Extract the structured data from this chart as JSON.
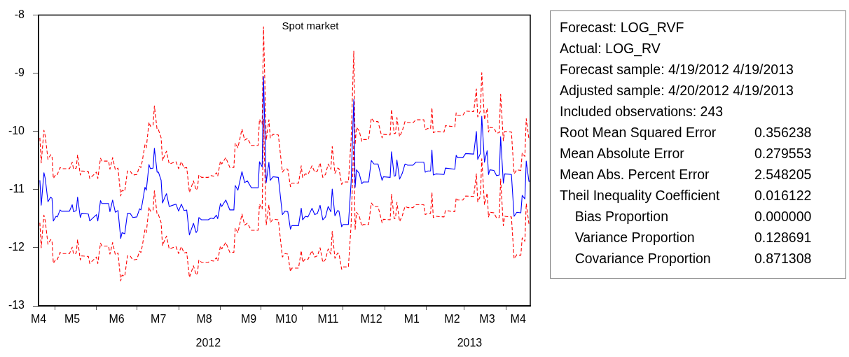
{
  "chart_data": {
    "type": "line",
    "title": "Spot market",
    "x": [
      "2012-04-20",
      "2012-04-21",
      "2012-04-23",
      "2012-04-24",
      "2012-04-26",
      "2012-04-28",
      "2012-04-29",
      "2012-04-30",
      "2012-05-02",
      "2012-05-03",
      "2012-05-05",
      "2012-05-06",
      "2012-05-12",
      "2012-05-14",
      "2012-05-15",
      "2012-05-17",
      "2012-05-18",
      "2012-05-20",
      "2012-05-21",
      "2012-05-26",
      "2012-05-27",
      "2012-06-01",
      "2012-06-02",
      "2012-06-04",
      "2012-06-05",
      "2012-06-10",
      "2012-06-11",
      "2012-06-13",
      "2012-06-15",
      "2012-06-17",
      "2012-06-19",
      "2012-06-20",
      "2012-06-22",
      "2012-06-24",
      "2012-06-26",
      "2012-06-28",
      "2012-07-01",
      "2012-07-03",
      "2012-07-04",
      "2012-07-05",
      "2012-07-07",
      "2012-07-08",
      "2012-07-10",
      "2012-07-11",
      "2012-07-13",
      "2012-07-14",
      "2012-07-16",
      "2012-07-17",
      "2012-07-19",
      "2012-07-20",
      "2012-07-22",
      "2012-07-23",
      "2012-07-25",
      "2012-07-30",
      "2012-08-01",
      "2012-08-03",
      "2012-08-05",
      "2012-08-07",
      "2012-08-09",
      "2012-08-12",
      "2012-08-14",
      "2012-08-15",
      "2012-08-16",
      "2012-08-18",
      "2012-08-23",
      "2012-08-25",
      "2012-08-27",
      "2012-08-29",
      "2012-08-30",
      "2012-09-01",
      "2012-09-02",
      "2012-09-05",
      "2012-09-08",
      "2012-09-11",
      "2012-09-12",
      "2012-09-14",
      "2012-09-17",
      "2012-09-19",
      "2012-09-21",
      "2012-09-24",
      "2012-09-29",
      "2012-09-30",
      "2012-10-02",
      "2012-10-03",
      "2012-10-05",
      "2012-10-07",
      "2012-10-08",
      "2012-10-10",
      "2012-10-14",
      "2012-10-17",
      "2012-10-19",
      "2012-10-21",
      "2012-10-23",
      "2012-10-24",
      "2012-10-29",
      "2012-10-31",
      "2012-11-01",
      "2012-11-03",
      "2012-11-05",
      "2012-11-08",
      "2012-11-10",
      "2012-11-12",
      "2012-11-14",
      "2012-11-16",
      "2012-11-18",
      "2012-11-20",
      "2012-11-22",
      "2012-11-23",
      "2012-11-25",
      "2012-11-27",
      "2012-11-28",
      "2012-11-30",
      "2012-12-01",
      "2012-12-05",
      "2012-12-07",
      "2012-12-09",
      "2012-12-10",
      "2012-12-11",
      "2012-12-13",
      "2012-12-15",
      "2012-12-16",
      "2012-12-20",
      "2012-12-22",
      "2012-12-24",
      "2012-12-27",
      "2012-12-30",
      "2012-12-31",
      "2013-01-05",
      "2013-01-06",
      "2013-01-08",
      "2013-01-09",
      "2013-01-10",
      "2013-01-12",
      "2013-01-14",
      "2013-01-16",
      "2013-01-18",
      "2013-01-22",
      "2013-01-24",
      "2013-01-30",
      "2013-01-31",
      "2013-02-02",
      "2013-02-04",
      "2013-02-05",
      "2013-02-06",
      "2013-02-08",
      "2013-02-14",
      "2013-02-15",
      "2013-02-22",
      "2013-02-23",
      "2013-02-24",
      "2013-02-28",
      "2013-03-02",
      "2013-03-08",
      "2013-03-10",
      "2013-03-11",
      "2013-03-13",
      "2013-03-14",
      "2013-03-16",
      "2013-03-18",
      "2013-03-19",
      "2013-03-20",
      "2013-03-23",
      "2013-03-25",
      "2013-03-27",
      "2013-03-28",
      "2013-03-30",
      "2013-03-31",
      "2013-04-05",
      "2013-04-07",
      "2013-04-09",
      "2013-04-12",
      "2013-04-13",
      "2013-04-15",
      "2013-04-16",
      "2013-04-18",
      "2013-04-19"
    ],
    "series": [
      {
        "color": "#0000ff",
        "line_style": "solid",
        "values": [
          -10.84,
          -11.27,
          -10.71,
          -10.81,
          -11.21,
          -11.13,
          -11.15,
          -11.54,
          -11.46,
          -11.47,
          -11.35,
          -11.37,
          -11.37,
          -11.26,
          -11.38,
          -11.36,
          -11.13,
          -11.48,
          -11.41,
          -11.42,
          -11.54,
          -11.43,
          -11.54,
          -11.19,
          -11.24,
          -11.24,
          -11.38,
          -11.18,
          -11.39,
          -11.36,
          -11.84,
          -11.74,
          -11.76,
          -11.41,
          -11.41,
          -11.48,
          -11.47,
          -11.33,
          -11.35,
          -11.24,
          -10.96,
          -11.01,
          -10.57,
          -10.64,
          -10.63,
          -10.29,
          -10.7,
          -10.7,
          -10.84,
          -11.23,
          -11.12,
          -11.07,
          -11.29,
          -11.25,
          -11.37,
          -11.25,
          -11.36,
          -11.35,
          -11.78,
          -11.58,
          -11.74,
          -11.7,
          -11.48,
          -11.52,
          -11.52,
          -11.49,
          -11.5,
          -11.44,
          -11.5,
          -11.24,
          -11.29,
          -11.18,
          -11.35,
          -11.35,
          -10.93,
          -11.01,
          -10.69,
          -10.88,
          -10.85,
          -10.97,
          -10.97,
          -10.52,
          -10.61,
          -9.06,
          -10.88,
          -10.53,
          -10.84,
          -10.78,
          -10.79,
          -11.43,
          -11.37,
          -11.38,
          -11.68,
          -11.62,
          -11.62,
          -11.32,
          -11.52,
          -11.46,
          -11.47,
          -11.32,
          -11.43,
          -11.41,
          -11.27,
          -11.52,
          -11.47,
          -11.29,
          -11.38,
          -10.99,
          -11.45,
          -11.36,
          -11.37,
          -11.64,
          -11.6,
          -11.6,
          -10.88,
          -9.45,
          -10.96,
          -10.66,
          -10.72,
          -10.9,
          -10.87,
          -10.87,
          -10.5,
          -10.56,
          -10.56,
          -10.84,
          -10.78,
          -10.79,
          -10.35,
          -10.77,
          -10.76,
          -10.49,
          -10.82,
          -10.72,
          -10.56,
          -10.58,
          -10.58,
          -10.53,
          -10.53,
          -10.7,
          -10.68,
          -10.68,
          -10.32,
          -10.75,
          -10.73,
          -10.74,
          -10.63,
          -10.65,
          -10.41,
          -10.45,
          -10.45,
          -10.38,
          -10.39,
          -10.0,
          -10.48,
          -10.38,
          -9.74,
          -10.53,
          -10.33,
          -10.74,
          -10.66,
          -10.67,
          -10.76,
          -10.75,
          -10.09,
          -10.89,
          -10.73,
          -10.74,
          -11.46,
          -11.39,
          -11.4,
          -11.1,
          -11.16,
          -10.51,
          -10.86,
          -10.85
        ]
      },
      {
        "color": "#ff0000",
        "line_style": "dashed",
        "values": [
          -10.11,
          -10.54,
          -9.98,
          -10.08,
          -10.48,
          -10.4,
          -10.42,
          -10.81,
          -10.73,
          -10.74,
          -10.62,
          -10.64,
          -10.64,
          -10.53,
          -10.65,
          -10.63,
          -10.4,
          -10.75,
          -10.68,
          -10.69,
          -10.81,
          -10.7,
          -10.81,
          -10.46,
          -10.51,
          -10.51,
          -10.65,
          -10.45,
          -10.66,
          -10.63,
          -11.11,
          -11.01,
          -11.03,
          -10.68,
          -10.68,
          -10.75,
          -10.74,
          -10.6,
          -10.62,
          -10.51,
          -10.23,
          -10.28,
          -9.84,
          -9.91,
          -9.9,
          -9.56,
          -9.97,
          -9.97,
          -10.11,
          -10.5,
          -10.39,
          -10.34,
          -10.56,
          -10.52,
          -10.64,
          -10.52,
          -10.63,
          -10.62,
          -11.05,
          -10.85,
          -11.01,
          -10.97,
          -10.75,
          -10.79,
          -10.79,
          -10.76,
          -10.77,
          -10.71,
          -10.77,
          -10.51,
          -10.56,
          -10.45,
          -10.62,
          -10.62,
          -10.2,
          -10.28,
          -9.96,
          -10.15,
          -10.12,
          -10.24,
          -10.24,
          -9.79,
          -9.88,
          -8.2,
          -10.15,
          -9.8,
          -10.11,
          -10.05,
          -10.06,
          -10.7,
          -10.64,
          -10.65,
          -10.95,
          -10.89,
          -10.89,
          -10.59,
          -10.79,
          -10.73,
          -10.74,
          -10.59,
          -10.7,
          -10.68,
          -10.54,
          -10.79,
          -10.74,
          -10.56,
          -10.65,
          -10.26,
          -10.72,
          -10.63,
          -10.64,
          -10.91,
          -10.87,
          -10.87,
          -10.15,
          -8.62,
          -10.23,
          -9.93,
          -9.99,
          -10.17,
          -10.14,
          -10.14,
          -9.77,
          -9.83,
          -9.83,
          -10.11,
          -10.05,
          -10.06,
          -9.62,
          -10.04,
          -10.03,
          -9.76,
          -10.09,
          -9.99,
          -9.83,
          -9.85,
          -9.85,
          -9.8,
          -9.8,
          -9.97,
          -9.95,
          -9.95,
          -9.59,
          -10.02,
          -10.0,
          -10.01,
          -9.9,
          -9.92,
          -9.68,
          -9.72,
          -9.72,
          -9.65,
          -9.66,
          -9.27,
          -9.75,
          -9.65,
          -8.99,
          -9.8,
          -9.6,
          -10.01,
          -9.93,
          -9.94,
          -10.03,
          -10.02,
          -9.36,
          -10.16,
          -10.0,
          -10.01,
          -10.73,
          -10.66,
          -10.67,
          -10.37,
          -10.43,
          -9.78,
          -10.13,
          -10.12
        ]
      },
      {
        "color": "#ff0000",
        "line_style": "dashed",
        "values": [
          -11.57,
          -12.0,
          -11.44,
          -11.54,
          -11.94,
          -11.86,
          -11.88,
          -12.27,
          -12.19,
          -12.2,
          -12.08,
          -12.1,
          -12.1,
          -11.99,
          -12.11,
          -12.09,
          -11.86,
          -12.21,
          -12.14,
          -12.15,
          -12.27,
          -12.16,
          -12.27,
          -11.92,
          -11.97,
          -11.97,
          -12.11,
          -11.91,
          -12.12,
          -12.09,
          -12.57,
          -12.47,
          -12.49,
          -12.14,
          -12.14,
          -12.21,
          -12.2,
          -12.06,
          -12.08,
          -11.97,
          -11.69,
          -11.74,
          -11.3,
          -11.37,
          -11.36,
          -11.02,
          -11.43,
          -11.43,
          -11.57,
          -11.96,
          -11.85,
          -11.8,
          -12.02,
          -11.98,
          -12.1,
          -11.98,
          -12.09,
          -12.08,
          -12.51,
          -12.31,
          -12.47,
          -12.43,
          -12.21,
          -12.25,
          -12.25,
          -12.22,
          -12.23,
          -12.17,
          -12.23,
          -11.97,
          -12.02,
          -11.91,
          -12.08,
          -12.08,
          -11.66,
          -11.74,
          -11.42,
          -11.61,
          -11.58,
          -11.7,
          -11.7,
          -11.25,
          -11.34,
          -9.79,
          -11.61,
          -11.26,
          -11.57,
          -11.51,
          -11.52,
          -12.16,
          -12.1,
          -12.11,
          -12.41,
          -12.35,
          -12.35,
          -12.05,
          -12.25,
          -12.19,
          -12.2,
          -12.05,
          -12.16,
          -12.14,
          -12.0,
          -12.25,
          -12.2,
          -12.02,
          -12.11,
          -11.72,
          -12.18,
          -12.09,
          -12.1,
          -12.37,
          -12.33,
          -12.33,
          -11.61,
          -10.18,
          -11.69,
          -11.39,
          -11.45,
          -11.63,
          -11.6,
          -11.6,
          -11.23,
          -11.29,
          -11.29,
          -11.57,
          -11.51,
          -11.52,
          -11.08,
          -11.5,
          -11.49,
          -11.22,
          -11.55,
          -11.45,
          -11.29,
          -11.31,
          -11.31,
          -11.26,
          -11.26,
          -11.43,
          -11.41,
          -11.41,
          -11.05,
          -11.48,
          -11.46,
          -11.47,
          -11.36,
          -11.38,
          -11.14,
          -11.18,
          -11.18,
          -11.11,
          -11.12,
          -10.73,
          -11.21,
          -11.11,
          -10.47,
          -11.26,
          -11.06,
          -11.47,
          -11.39,
          -11.4,
          -11.49,
          -11.48,
          -10.82,
          -11.62,
          -11.46,
          -11.47,
          -12.19,
          -12.12,
          -12.13,
          -11.83,
          -11.89,
          -11.24,
          -11.59,
          -11.58
        ]
      }
    ],
    "xlim": [
      "2012-04-19",
      "2013-04-19"
    ],
    "xticks": [
      {
        "value": "2012-04-19",
        "label": "M4"
      },
      {
        "value": "2012-05-01",
        "label": null
      },
      {
        "value": "2012-05-14",
        "label": "M5"
      },
      {
        "value": "2012-06-01",
        "label": null
      },
      {
        "value": "2012-06-16",
        "label": "M6"
      },
      {
        "value": "2012-07-01",
        "label": null
      },
      {
        "value": "2012-07-17",
        "label": "M7"
      },
      {
        "value": "2012-08-01",
        "label": null
      },
      {
        "value": "2012-08-20",
        "label": "M8"
      },
      {
        "value": "2012-09-01",
        "label": null
      },
      {
        "value": "2012-09-22",
        "label": "M9"
      },
      {
        "value": "2012-10-01",
        "label": null
      },
      {
        "value": "2012-10-20",
        "label": "M10"
      },
      {
        "value": "2012-11-01",
        "label": null
      },
      {
        "value": "2012-11-20",
        "label": "M11"
      },
      {
        "value": "2012-12-01",
        "label": null
      },
      {
        "value": "2012-12-22",
        "label": "M12"
      },
      {
        "value": "2013-01-01",
        "label": null
      },
      {
        "value": "2013-01-21",
        "label": "M1"
      },
      {
        "value": "2013-02-01",
        "label": null
      },
      {
        "value": "2013-02-20",
        "label": "M2"
      },
      {
        "value": "2013-03-01",
        "label": null
      },
      {
        "value": "2013-03-18",
        "label": "M3"
      },
      {
        "value": "2013-04-01",
        "label": null
      },
      {
        "value": "2013-04-10",
        "label": "M4"
      }
    ],
    "ylim": [
      -13,
      -8
    ],
    "yticks": [
      -13,
      -12,
      -11,
      -10,
      -9,
      -8
    ],
    "marker": "none",
    "x2lim": [
      "2012-04-19",
      "2013-04-19"
    ],
    "x2ticks": [
      {
        "value": "2012-08-23",
        "label": "2012"
      },
      {
        "value": "2013-03-05",
        "label": "2013"
      }
    ],
    "annotations": [
      "Forecast: LOG_RVF",
      "Actual: LOG_RV",
      "Forecast sample: 4/19/2012 4/19/2013",
      "Adjusted sample: 4/20/2012 4/19/2013",
      "Included observations: 243",
      "Root Mean Squared Error\t0.356238",
      "Mean Absolute Error\t0.279553",
      "Mean Abs. Percent Error\t2.548205",
      "Theil Inequality Coefficient\t0.016122",
      "    Bias Proportion\t0.000000",
      "    Variance Proportion\t0.128691",
      "    Covariance Proportion\t0.871308"
    ]
  }
}
